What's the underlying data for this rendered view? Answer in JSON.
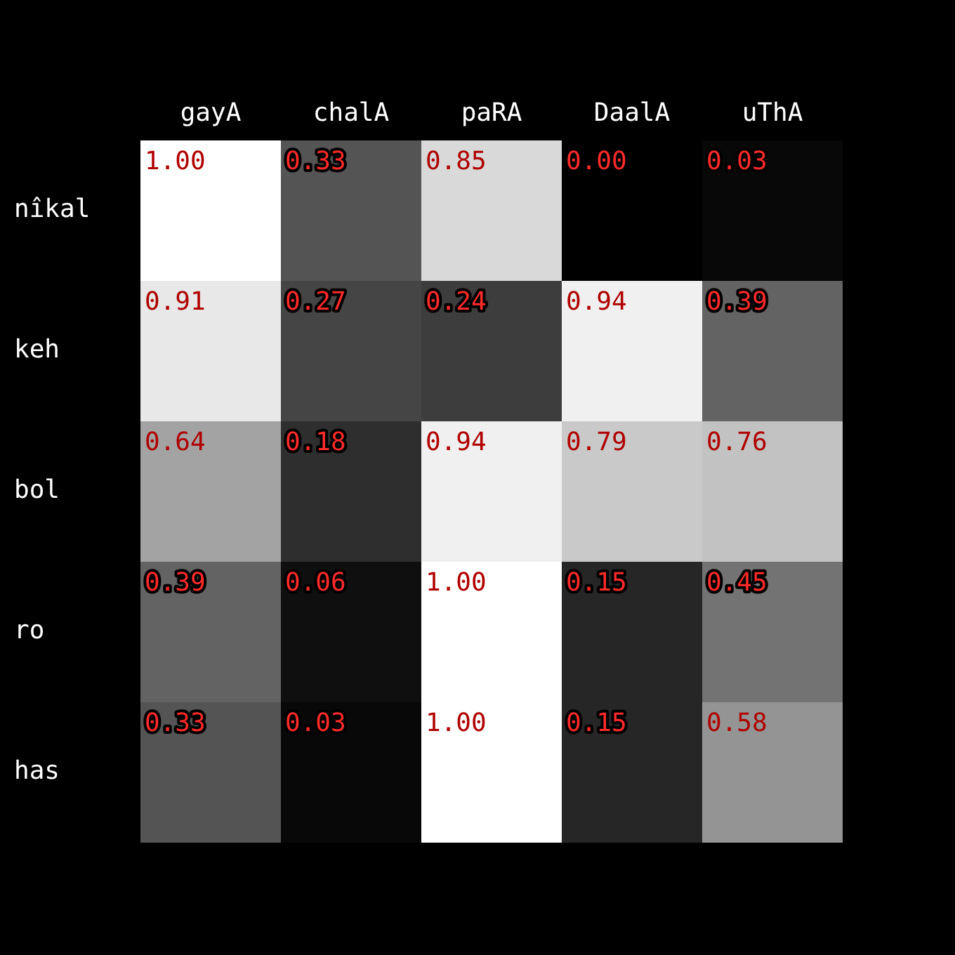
{
  "chart_data": {
    "type": "heatmap",
    "categories": [
      "gayA",
      "chalA",
      "paRA",
      "DaalA",
      "uThA"
    ],
    "y_categories": [
      "nîkal",
      "keh",
      "bol",
      "ro",
      "has"
    ],
    "cells": [
      [
        1.0,
        0.33,
        0.85,
        0.0,
        0.03
      ],
      [
        0.91,
        0.27,
        0.24,
        0.94,
        0.39
      ],
      [
        0.64,
        0.18,
        0.94,
        0.79,
        0.76
      ],
      [
        0.39,
        0.06,
        1.0,
        0.15,
        0.45
      ],
      [
        0.33,
        0.03,
        1.0,
        0.15,
        0.58
      ]
    ],
    "cell_labels": [
      [
        "1.00",
        "0.33",
        "0.85",
        "0.00",
        "0.03"
      ],
      [
        "0.91",
        "0.27",
        "0.24",
        "0.94",
        "0.39"
      ],
      [
        "0.64",
        "0.18",
        "0.94",
        "0.79",
        "0.76"
      ],
      [
        "0.39",
        "0.06",
        "1.00",
        "0.15",
        "0.45"
      ],
      [
        "0.33",
        "0.03",
        "1.00",
        "0.15",
        "0.58"
      ]
    ],
    "data_labels": true
  }
}
